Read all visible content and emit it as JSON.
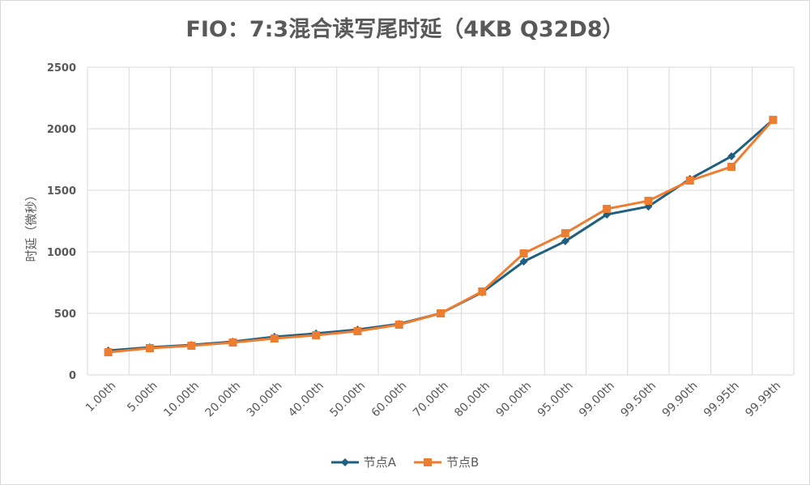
{
  "chart_data": {
    "type": "line",
    "title": "FIO：7:3混合读写尾时延（4KB Q32D8）",
    "xlabel": "",
    "ylabel": "时延（微秒）",
    "ylim": [
      0,
      2500
    ],
    "yticks": [
      "0",
      "500",
      "1000",
      "1500",
      "2000",
      "2500"
    ],
    "grid": true,
    "legend_position": "bottom",
    "categories": [
      "1.00th",
      "5.00th",
      "10.00th",
      "20.00th",
      "30.00th",
      "40.00th",
      "50.00th",
      "60.00th",
      "70.00th",
      "80.00th",
      "90.00th",
      "95.00th",
      "99.00th",
      "99.50th",
      "99.90th",
      "99.95th",
      "99.99th"
    ],
    "series": [
      {
        "name": "节点A",
        "color": "#1f5f7f",
        "marker": "diamond",
        "values": [
          197,
          224,
          243,
          270,
          309,
          336,
          368,
          414,
          500,
          671,
          921,
          1086,
          1303,
          1368,
          1592,
          1776,
          2072
        ]
      },
      {
        "name": "节点B",
        "color": "#ed7d31",
        "marker": "square",
        "values": [
          184,
          217,
          237,
          263,
          296,
          322,
          355,
          408,
          500,
          678,
          987,
          1151,
          1349,
          1414,
          1579,
          1691,
          2072
        ]
      }
    ]
  }
}
